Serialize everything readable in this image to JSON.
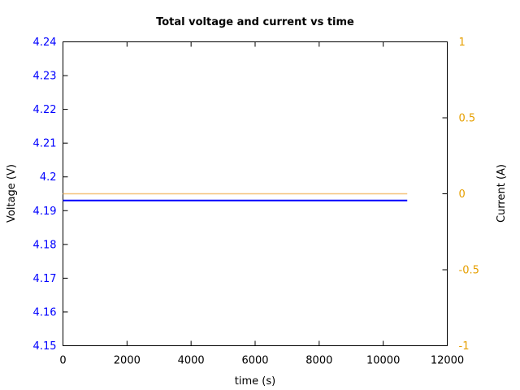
{
  "chart_data": {
    "type": "line",
    "title": "Total voltage and current vs time",
    "xlabel": "time (s)",
    "ylabel_left": "Voltage (V)",
    "ylabel_right": "Current (A)",
    "xlim": [
      0,
      12000
    ],
    "ylim_left": [
      4.15,
      4.24
    ],
    "ylim_right": [
      -1,
      1
    ],
    "x_ticks": [
      "0",
      "2000",
      "4000",
      "6000",
      "8000",
      "10000",
      "12000"
    ],
    "y_left_ticks": [
      "4.15",
      "4.16",
      "4.17",
      "4.18",
      "4.19",
      "4.2",
      "4.21",
      "4.22",
      "4.23",
      "4.24"
    ],
    "y_right_ticks": [
      "-1",
      "-0.5",
      "0",
      "0.5",
      "1"
    ],
    "grid": false,
    "colors": {
      "left_axis": "#0000ff",
      "right_axis": "#e69f00",
      "voltage_line": "#0000ff",
      "current_line": "#f4c27a"
    },
    "series": [
      {
        "axis": "left",
        "x": [
          0,
          10750
        ],
        "y": [
          4.193,
          4.193
        ]
      },
      {
        "axis": "right",
        "x": [
          0,
          10750
        ],
        "y": [
          0,
          0
        ]
      }
    ]
  }
}
